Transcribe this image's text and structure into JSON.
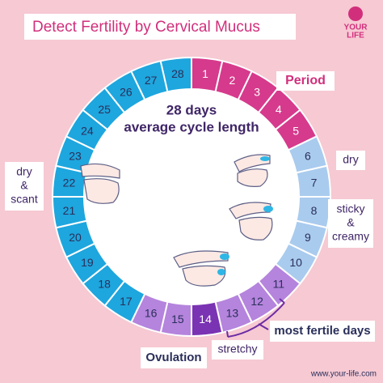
{
  "header": {
    "title": "Detect Fertility by Cervical Mucus",
    "logo_lines": [
      "YOUR",
      "LIFE"
    ]
  },
  "center": {
    "lines": [
      "28 days",
      "average cycle length"
    ]
  },
  "days": [
    {
      "label": "1",
      "color": "#d63a8c",
      "text_color": "#ffffff"
    },
    {
      "label": "2",
      "color": "#d63a8c",
      "text_color": "#ffffff"
    },
    {
      "label": "3",
      "color": "#d63a8c",
      "text_color": "#ffffff"
    },
    {
      "label": "4",
      "color": "#d63a8c",
      "text_color": "#ffffff"
    },
    {
      "label": "5",
      "color": "#d63a8c",
      "text_color": "#ffffff"
    },
    {
      "label": "6",
      "color": "#a9cbee",
      "text_color": "#2a2f5a"
    },
    {
      "label": "7",
      "color": "#a9cbee",
      "text_color": "#2a2f5a"
    },
    {
      "label": "8",
      "color": "#a9cbee",
      "text_color": "#2a2f5a"
    },
    {
      "label": "9",
      "color": "#a9cbee",
      "text_color": "#2a2f5a"
    },
    {
      "label": "10",
      "color": "#a9cbee",
      "text_color": "#2a2f5a"
    },
    {
      "label": "11",
      "color": "#b584dd",
      "text_color": "#2a2f5a"
    },
    {
      "label": "12",
      "color": "#b584dd",
      "text_color": "#2a2f5a"
    },
    {
      "label": "13",
      "color": "#b584dd",
      "text_color": "#2a2f5a"
    },
    {
      "label": "14",
      "color": "#7a33b3",
      "text_color": "#ffffff"
    },
    {
      "label": "15",
      "color": "#b584dd",
      "text_color": "#2a2f5a"
    },
    {
      "label": "16",
      "color": "#b584dd",
      "text_color": "#2a2f5a"
    },
    {
      "label": "17",
      "color": "#1ea6de",
      "text_color": "#2a2f5a"
    },
    {
      "label": "18",
      "color": "#1ea6de",
      "text_color": "#2a2f5a"
    },
    {
      "label": "19",
      "color": "#1ea6de",
      "text_color": "#2a2f5a"
    },
    {
      "label": "20",
      "color": "#1ea6de",
      "text_color": "#2a2f5a"
    },
    {
      "label": "21",
      "color": "#1ea6de",
      "text_color": "#2a2f5a"
    },
    {
      "label": "22",
      "color": "#1ea6de",
      "text_color": "#2a2f5a"
    },
    {
      "label": "23",
      "color": "#1ea6de",
      "text_color": "#2a2f5a"
    },
    {
      "label": "24",
      "color": "#1ea6de",
      "text_color": "#2a2f5a"
    },
    {
      "label": "25",
      "color": "#1ea6de",
      "text_color": "#2a2f5a"
    },
    {
      "label": "26",
      "color": "#1ea6de",
      "text_color": "#2a2f5a"
    },
    {
      "label": "27",
      "color": "#1ea6de",
      "text_color": "#2a2f5a"
    },
    {
      "label": "28",
      "color": "#1ea6de",
      "text_color": "#2a2f5a"
    }
  ],
  "callouts": {
    "period": "Period",
    "dry": "dry",
    "sticky_creamy": [
      "sticky",
      "&",
      "creamy"
    ],
    "dry_scant": [
      "dry",
      "&",
      "scant"
    ],
    "most_fertile": "most fertile days",
    "ovulation": "Ovulation",
    "stretchy": "stretchy"
  },
  "footer": {
    "website": "www.your-life.com"
  }
}
